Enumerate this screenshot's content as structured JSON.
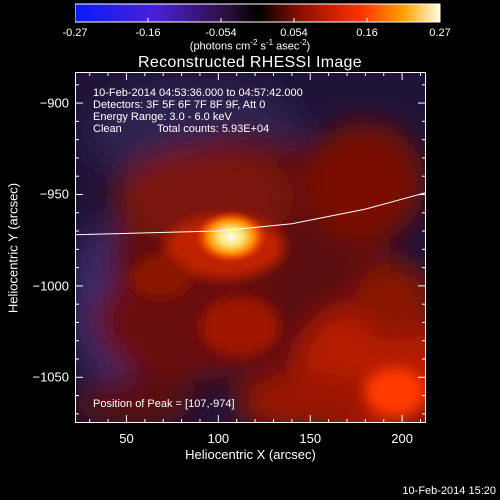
{
  "chart_data": {
    "type": "heatmap",
    "title": "Reconstructed RHESSI Image",
    "xlabel": "Heliocentric X (arcsec)",
    "ylabel": "Heliocentric Y (arcsec)",
    "xlim": [
      22,
      213
    ],
    "ylim": [
      -1075,
      -883
    ],
    "x_ticks": [
      50,
      100,
      150,
      200
    ],
    "y_ticks": [
      -900,
      -950,
      -1000,
      -1050
    ],
    "colorbar": {
      "ticks": [
        "-0.27",
        "-0.16",
        "-0.054",
        "0.054",
        "0.16",
        "0.27"
      ],
      "range": [
        -0.27,
        0.27
      ],
      "units_main": "(photons cm",
      "units_sup1": "-2",
      "units_mid": " s",
      "units_sup2": "-1",
      "units_mid2": " asec",
      "units_sup3": "-2",
      "units_end": ")"
    },
    "annotations": {
      "time_range": "10-Feb-2014 04:53:36.000 to 04:57:42.000",
      "detectors": "Detectors: 3F 5F 6F 7F 8F 9F, Att 0",
      "energy": "Energy Range: 3.0 - 6.0 keV",
      "method": "Clean",
      "counts": "Total counts: 5.93E+04",
      "peak": "Position of Peak = [107,-974]"
    },
    "peak": [
      107,
      -974
    ],
    "limb_curve": [
      [
        22,
        -972
      ],
      [
        60,
        -971
      ],
      [
        100,
        -970
      ],
      [
        140,
        -966
      ],
      [
        180,
        -958
      ],
      [
        213,
        -949
      ]
    ]
  },
  "timestamp": "10-Feb-2014 15:20"
}
